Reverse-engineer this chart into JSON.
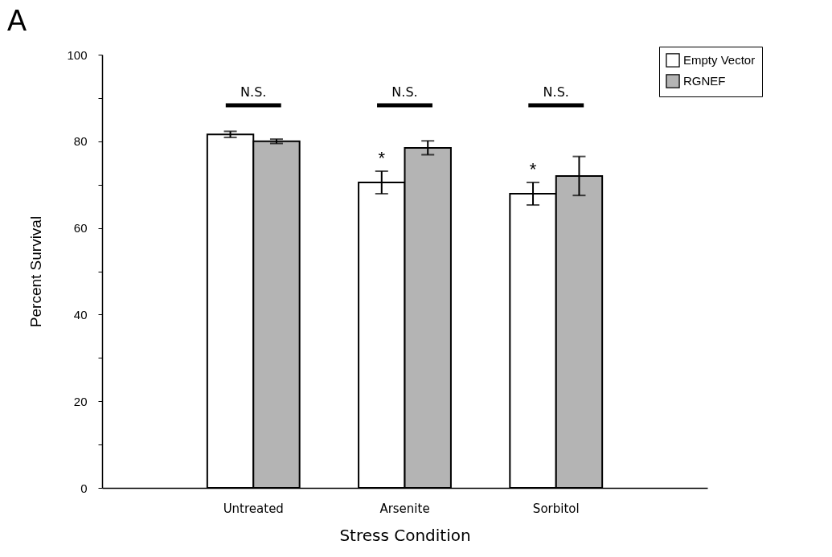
{
  "chart_data": {
    "type": "bar",
    "title": "A",
    "xlabel": "Stress Condition",
    "ylabel": "Percent Survival",
    "categories": [
      "Untreated",
      "Arsenite",
      "Sorbitol"
    ],
    "series": [
      {
        "name": "Empty Vector",
        "color": "#ffffff",
        "values": [
          81.6,
          70.5,
          67.9
        ],
        "errors": [
          0.7,
          2.6,
          2.6
        ],
        "value_labels": [
          null,
          "*",
          "*"
        ]
      },
      {
        "name": "RGNEF",
        "color": "#b4b4b4",
        "values": [
          80.0,
          78.5,
          72.0
        ],
        "errors": [
          0.5,
          1.6,
          4.5
        ]
      }
    ],
    "ylim": [
      0,
      100
    ],
    "yticks": [
      0,
      {
        "value": 10,
        "label": null
      },
      20,
      {
        "value": 30,
        "label": null
      },
      40,
      {
        "value": 50,
        "label": null
      },
      60,
      {
        "value": 70,
        "label": null
      },
      80,
      {
        "value": 90,
        "label": null
      },
      100
    ],
    "annotations": [
      "N.S.",
      "N.S.",
      "N.S."
    ],
    "grid": false,
    "legend": "top right"
  }
}
